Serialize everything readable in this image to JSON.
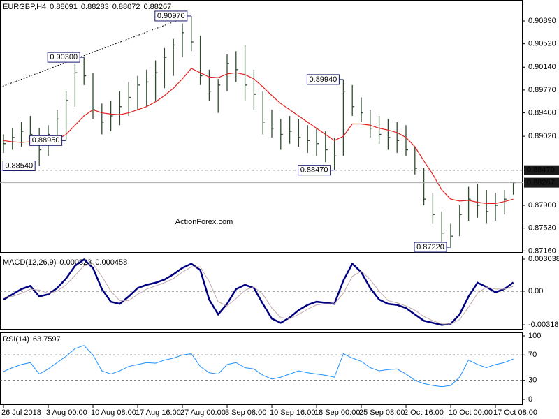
{
  "chart_data": [
    {
      "type": "ohlc",
      "title": "EURGBP,H4",
      "header_values": [
        0.88091,
        0.88283,
        0.88072,
        0.88267
      ],
      "watermark": "ActionForex.com",
      "color": "#2f4a2f",
      "ma_color": "#e0201f",
      "categories": [
        "26 Jul 2018",
        null,
        null,
        null,
        null,
        "3 Aug 00:00",
        null,
        null,
        null,
        null,
        "10 Aug 08:00",
        null,
        null,
        null,
        null,
        "17 Aug 16:00",
        null,
        null,
        null,
        null,
        "27 Aug 00:00",
        null,
        null,
        null,
        null,
        "3 Sep 08:00",
        null,
        null,
        null,
        null,
        "10 Sep 16:00",
        null,
        null,
        null,
        null,
        "18 Sep 00:00",
        null,
        null,
        null,
        null,
        "25 Sep 08:00",
        null,
        null,
        null,
        null,
        "2 Oct 16:00",
        null,
        null,
        null,
        null,
        "10 Oct 00:00",
        null,
        null,
        null,
        null,
        "17 Oct 08:00",
        null,
        null
      ],
      "high": [
        0.8905,
        0.8915,
        0.8925,
        0.8935,
        0.8915,
        0.892,
        0.8945,
        0.8975,
        0.902,
        0.903,
        0.9005,
        0.8955,
        0.896,
        0.8975,
        0.899,
        0.9,
        0.901,
        0.9025,
        0.9045,
        0.906,
        0.9085,
        0.9097,
        0.9065,
        0.901,
        0.8995,
        0.9035,
        0.904,
        0.905,
        0.901,
        0.8975,
        0.8945,
        0.893,
        0.8935,
        0.893,
        0.892,
        0.8915,
        0.891,
        0.89,
        0.8994,
        0.8985,
        0.8965,
        0.8945,
        0.8935,
        0.893,
        0.8925,
        0.892,
        0.8885,
        0.885,
        0.881,
        0.878,
        0.876,
        0.879,
        0.882,
        0.8825,
        0.8815,
        0.881,
        0.8815,
        0.88283
      ],
      "low": [
        0.8875,
        0.888,
        0.8885,
        0.889,
        0.8854,
        0.887,
        0.889,
        0.8895,
        0.895,
        0.8985,
        0.893,
        0.8905,
        0.891,
        0.892,
        0.8935,
        0.8945,
        0.895,
        0.896,
        0.898,
        0.9,
        0.903,
        0.904,
        0.8985,
        0.896,
        0.894,
        0.8975,
        0.899,
        0.896,
        0.8945,
        0.8905,
        0.89,
        0.888,
        0.889,
        0.8885,
        0.8875,
        0.887,
        0.886,
        0.8847,
        0.887,
        0.8935,
        0.8925,
        0.89,
        0.889,
        0.888,
        0.8875,
        0.887,
        0.884,
        0.879,
        0.876,
        0.873,
        0.8722,
        0.874,
        0.8765,
        0.877,
        0.876,
        0.8765,
        0.8775,
        0.88072
      ],
      "close": [
        0.889,
        0.89,
        0.891,
        0.8905,
        0.888,
        0.8905,
        0.893,
        0.896,
        0.9005,
        0.9,
        0.8945,
        0.8925,
        0.8935,
        0.895,
        0.8965,
        0.8985,
        0.899,
        0.9005,
        0.903,
        0.905,
        0.907,
        0.9055,
        0.9,
        0.8975,
        0.8985,
        0.902,
        0.901,
        0.8985,
        0.897,
        0.8925,
        0.8915,
        0.8905,
        0.891,
        0.89,
        0.8895,
        0.889,
        0.888,
        0.887,
        0.8975,
        0.895,
        0.894,
        0.8915,
        0.8905,
        0.89,
        0.8895,
        0.888,
        0.885,
        0.88,
        0.8775,
        0.8745,
        0.874,
        0.8775,
        0.88,
        0.879,
        0.878,
        0.879,
        0.88,
        0.88267
      ],
      "ma": [
        0.8895,
        0.8893,
        0.8892,
        0.8893,
        0.8892,
        0.8893,
        0.8897,
        0.8905,
        0.892,
        0.8935,
        0.8945,
        0.894,
        0.8938,
        0.8937,
        0.894,
        0.8945,
        0.895,
        0.8958,
        0.8968,
        0.898,
        0.8995,
        0.9012,
        0.9005,
        0.8998,
        0.8997,
        0.9003,
        0.9005,
        0.9002,
        0.8995,
        0.8982,
        0.8968,
        0.8955,
        0.8945,
        0.8935,
        0.8925,
        0.8915,
        0.8905,
        0.8895,
        0.8902,
        0.8922,
        0.8922,
        0.892,
        0.8915,
        0.8912,
        0.8908,
        0.89,
        0.8885,
        0.8862,
        0.884,
        0.8815,
        0.88,
        0.8797,
        0.8798,
        0.8795,
        0.8793,
        0.8793,
        0.8796,
        0.88
      ],
      "ylim": [
        0.8713,
        0.9123
      ],
      "yticks": [
        {
          "value": 0.9089,
          "label": "0.90890"
        },
        {
          "value": 0.9052,
          "label": "0.90520"
        },
        {
          "value": 0.9014,
          "label": "0.90140"
        },
        {
          "value": 0.8977,
          "label": "0.89770"
        },
        {
          "value": 0.894,
          "label": "0.89400"
        },
        {
          "value": 0.8902,
          "label": "0.89020"
        },
        {
          "value": 0.879,
          "label": "0.87900"
        },
        {
          "value": 0.8753,
          "label": "0.87530"
        },
        {
          "value": 0.8716,
          "label": "0.87160"
        }
      ],
      "levels": [
        {
          "value": 0.8847,
          "label": "0.88470"
        }
      ],
      "annotations": [
        {
          "value": 0.9097,
          "label": "0.90970"
        },
        {
          "value": 0.903,
          "label": "0.90300"
        },
        {
          "value": 0.8895,
          "label": "0.88950"
        },
        {
          "value": 0.8854,
          "label": "0.88540"
        },
        {
          "value": 0.8994,
          "label": "0.89940"
        },
        {
          "value": 0.8847,
          "label": "0.88470"
        },
        {
          "value": 0.8722,
          "label": "0.87220"
        }
      ]
    },
    {
      "type": "line",
      "title": "MACD(12,26,9)",
      "header_values": [
        0.000823,
        0.000458
      ],
      "series": [
        {
          "color": "#000080",
          "line_width": 2.5,
          "values": [
            -0.0008,
            -0.0003,
            0.0002,
            0.0005,
            -0.0005,
            -0.0003,
            0.0003,
            0.0012,
            0.0024,
            0.003,
            0.0022,
            0.0002,
            -0.001,
            -0.0012,
            -0.0005,
            0.0003,
            0.0006,
            0.0008,
            0.0011,
            0.0016,
            0.0022,
            0.0026,
            0.002,
            -0.0008,
            -0.0022,
            -0.0012,
            0.0002,
            0.0006,
            0.0003,
            -0.0012,
            -0.0026,
            -0.003,
            -0.0025,
            -0.0018,
            -0.0013,
            -0.001,
            -0.0011,
            -0.0012,
            0.001,
            0.0026,
            0.0018,
            0.0003,
            -0.0008,
            -0.0012,
            -0.0013,
            -0.0016,
            -0.0022,
            -0.0028,
            -0.003,
            -0.0032,
            -0.0031,
            -0.0022,
            -0.0005,
            0.0008,
            0.0004,
            -0.0001,
            0.0002,
            0.000823
          ]
        },
        {
          "color": "#c0a8a8",
          "line_width": 1,
          "values": [
            -0.0006,
            -0.0005,
            -0.0002,
            0.0002,
            0.0001,
            -0.0002,
            0,
            0.0006,
            0.0015,
            0.0024,
            0.0026,
            0.0014,
            0,
            -0.0009,
            -0.0009,
            -0.0003,
            0.0002,
            0.0005,
            0.0008,
            0.0012,
            0.0018,
            0.0023,
            0.0023,
            0.0009,
            -0.001,
            -0.0014,
            -0.0007,
            0.0001,
            0.0004,
            -0.0003,
            -0.0016,
            -0.0025,
            -0.0026,
            -0.0022,
            -0.0017,
            -0.0013,
            -0.0012,
            -0.0012,
            -0.0002,
            0.0014,
            0.0019,
            0.0011,
            0,
            -0.0009,
            -0.0011,
            -0.0014,
            -0.0018,
            -0.0024,
            -0.0028,
            -0.0031,
            -0.0031,
            -0.0027,
            -0.0015,
            -0.0002,
            0.0004,
            0.0002,
            0.0002,
            0.000458
          ]
        }
      ],
      "ylim": [
        -0.00364,
        0.00337
      ],
      "yticks": [
        0.003038,
        {
          "value": 0,
          "label": "0.00"
        },
        -0.003181
      ],
      "levels": [
        0
      ]
    },
    {
      "type": "line",
      "title": "RSI(14)",
      "header_values": [
        63.7597
      ],
      "series": [
        {
          "color": "#1e90ff",
          "line_width": 1,
          "values": [
            44,
            50,
            55,
            58,
            40,
            48,
            58,
            68,
            80,
            85,
            70,
            45,
            40,
            45,
            52,
            55,
            58,
            57,
            62,
            65,
            70,
            72,
            52,
            42,
            40,
            55,
            58,
            50,
            48,
            38,
            32,
            35,
            40,
            45,
            42,
            40,
            38,
            35,
            72,
            65,
            60,
            50,
            45,
            47,
            48,
            40,
            30,
            25,
            22,
            20,
            22,
            35,
            62,
            55,
            50,
            55,
            58,
            63.7597
          ]
        }
      ],
      "ylim": [
        -8.8,
        105.5
      ],
      "yticks": [
        100,
        70,
        30,
        0
      ],
      "levels": [
        70,
        30
      ]
    }
  ]
}
